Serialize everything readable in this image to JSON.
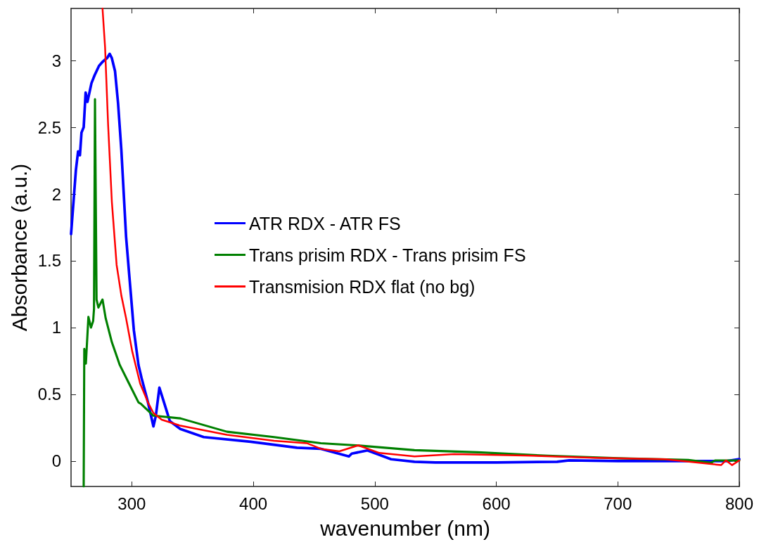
{
  "chart_data": {
    "type": "line",
    "xlabel": "wavenumber (nm)",
    "ylabel": "Absorbance (a.u.)",
    "xlim": [
      250,
      800
    ],
    "xticks": [
      300,
      400,
      500,
      600,
      700,
      800
    ],
    "ylim": [
      -0.19,
      3.39
    ],
    "yticks": [
      0,
      0.5,
      1,
      1.5,
      2,
      2.5,
      3
    ],
    "grid": false,
    "legend": "center",
    "marker": "none",
    "line_style": "solid",
    "series": [
      {
        "name": "ATR RDX - ATR FS",
        "color": "#0000ff",
        "x": [
          250,
          254,
          255.8,
          257.3,
          258.6,
          260.4,
          262,
          263.5,
          266.8,
          269.4,
          273,
          275.9,
          279.8,
          281.8,
          283.5,
          286.2,
          288.7,
          291.4,
          295.3,
          298.3,
          301.7,
          305.5,
          308.1,
          313.3,
          317.8,
          319.8,
          322.7,
          326.5,
          331.3,
          340,
          359.2,
          397.8,
          436,
          455.6,
          478.7,
          481,
          494,
          513.4,
          532.7,
          550,
          600,
          650,
          660,
          700,
          750,
          790,
          800
        ],
        "values": [
          1.7,
          2.18,
          2.32,
          2.29,
          2.46,
          2.5,
          2.76,
          2.69,
          2.83,
          2.89,
          2.96,
          2.99,
          3.02,
          3.05,
          3.02,
          2.92,
          2.68,
          2.33,
          1.68,
          1.35,
          0.98,
          0.72,
          0.62,
          0.44,
          0.26,
          0.34,
          0.55,
          0.44,
          0.3,
          0.24,
          0.18,
          0.145,
          0.1,
          0.092,
          0.035,
          0.056,
          0.08,
          0.014,
          -0.005,
          -0.01,
          -0.01,
          -0.005,
          0.005,
          0,
          0,
          0,
          0.015
        ]
      },
      {
        "name": "Trans prisim RDX - Trans prisim FS",
        "color": "#008000",
        "x": [
          260.4,
          260.9,
          262.2,
          264.3,
          266.4,
          268.2,
          268.9,
          269.7,
          271,
          272.5,
          275.9,
          278.5,
          283.6,
          290.1,
          297.8,
          305.5,
          307.3,
          317.8,
          340,
          378.3,
          417,
          455.6,
          484.5,
          532.7,
          584.7,
          642.5,
          700.3,
          758,
          777,
          780,
          800
        ],
        "values": [
          -0.19,
          0.84,
          0.73,
          1.08,
          1.0,
          1.05,
          1.14,
          2.71,
          1.21,
          1.15,
          1.21,
          1.07,
          0.89,
          0.72,
          0.58,
          0.44,
          0.43,
          0.34,
          0.32,
          0.22,
          0.18,
          0.134,
          0.118,
          0.082,
          0.066,
          0.04,
          0.021,
          0.009,
          -0.012,
          0.005,
          0.005
        ]
      },
      {
        "name": "Transmision RDX flat (no bg)",
        "color": "#ff0000",
        "x": [
          275.9,
          278,
          280.5,
          283.6,
          287.5,
          291.4,
          295.3,
          300.4,
          306.9,
          313.3,
          317.8,
          324.6,
          340,
          378.3,
          417,
          444,
          455.6,
          470.8,
          486.4,
          503.8,
          532.7,
          565.4,
          623.2,
          681,
          738.8,
          785,
          789,
          794,
          800
        ],
        "values": [
          3.39,
          3.1,
          2.52,
          1.94,
          1.47,
          1.24,
          1.07,
          0.82,
          0.58,
          0.44,
          0.36,
          0.31,
          0.265,
          0.197,
          0.152,
          0.134,
          0.092,
          0.073,
          0.118,
          0.061,
          0.035,
          0.052,
          0.042,
          0.025,
          0.014,
          -0.03,
          0.005,
          -0.03,
          0.005
        ]
      }
    ]
  }
}
